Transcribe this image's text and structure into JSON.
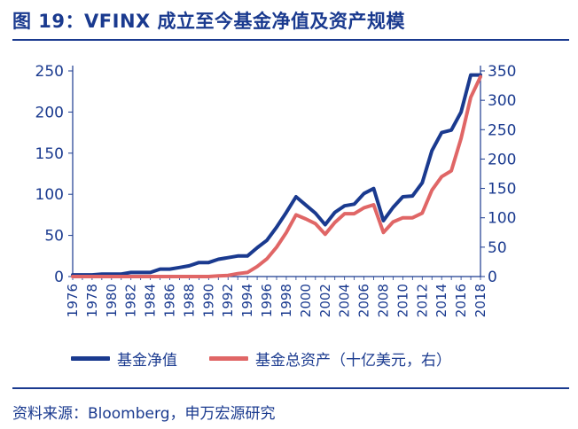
{
  "title": "图 19：VFINX 成立至今基金净值及资产规模",
  "source": "资料来源：Bloomberg，申万宏源研究",
  "chart_data": {
    "type": "line",
    "categories": [
      "1976",
      "1978",
      "1980",
      "1982",
      "1984",
      "1986",
      "1988",
      "1990",
      "1992",
      "1994",
      "1996",
      "1998",
      "2000",
      "2002",
      "2004",
      "2006",
      "2008",
      "2010",
      "2012",
      "2014",
      "2016",
      "2018"
    ],
    "x": [
      1976,
      1977,
      1978,
      1979,
      1980,
      1981,
      1982,
      1983,
      1984,
      1985,
      1986,
      1987,
      1988,
      1989,
      1990,
      1991,
      1992,
      1993,
      1994,
      1995,
      1996,
      1997,
      1998,
      1999,
      2000,
      2001,
      2002,
      2003,
      2004,
      2005,
      2006,
      2007,
      2008,
      2009,
      2010,
      2011,
      2012,
      2013,
      2014,
      2015,
      2016,
      2017,
      2018
    ],
    "series": [
      {
        "name": "基金净值",
        "axis": "left",
        "color": "#1a3a8f",
        "values": [
          2,
          2,
          2,
          3,
          3,
          3,
          5,
          5,
          5,
          9,
          9,
          11,
          13,
          17,
          17,
          21,
          23,
          25,
          25,
          35,
          44,
          60,
          78,
          97,
          87,
          77,
          63,
          78,
          86,
          88,
          101,
          107,
          68,
          84,
          97,
          98,
          114,
          153,
          175,
          178,
          200,
          245,
          245
        ]
      },
      {
        "name": "基金总资产（十亿美元，右）",
        "axis": "right",
        "color": "#e06666",
        "values": [
          0,
          0,
          0,
          0,
          0,
          0,
          0,
          0,
          0,
          0,
          0,
          0,
          0,
          0,
          0,
          1,
          2,
          5,
          7,
          17,
          30,
          50,
          75,
          105,
          98,
          90,
          72,
          92,
          107,
          107,
          117,
          122,
          75,
          93,
          100,
          100,
          108,
          147,
          170,
          180,
          235,
          305,
          340
        ]
      }
    ],
    "left_axis": {
      "ticks": [
        "0",
        "50",
        "100",
        "150",
        "200",
        "250"
      ],
      "ylim": [
        0,
        250
      ]
    },
    "right_axis": {
      "ticks": [
        "0",
        "50",
        "100",
        "150",
        "200",
        "250",
        "300",
        "350"
      ],
      "ylim": [
        0,
        350
      ]
    },
    "grid": false,
    "legend_position": "bottom"
  }
}
